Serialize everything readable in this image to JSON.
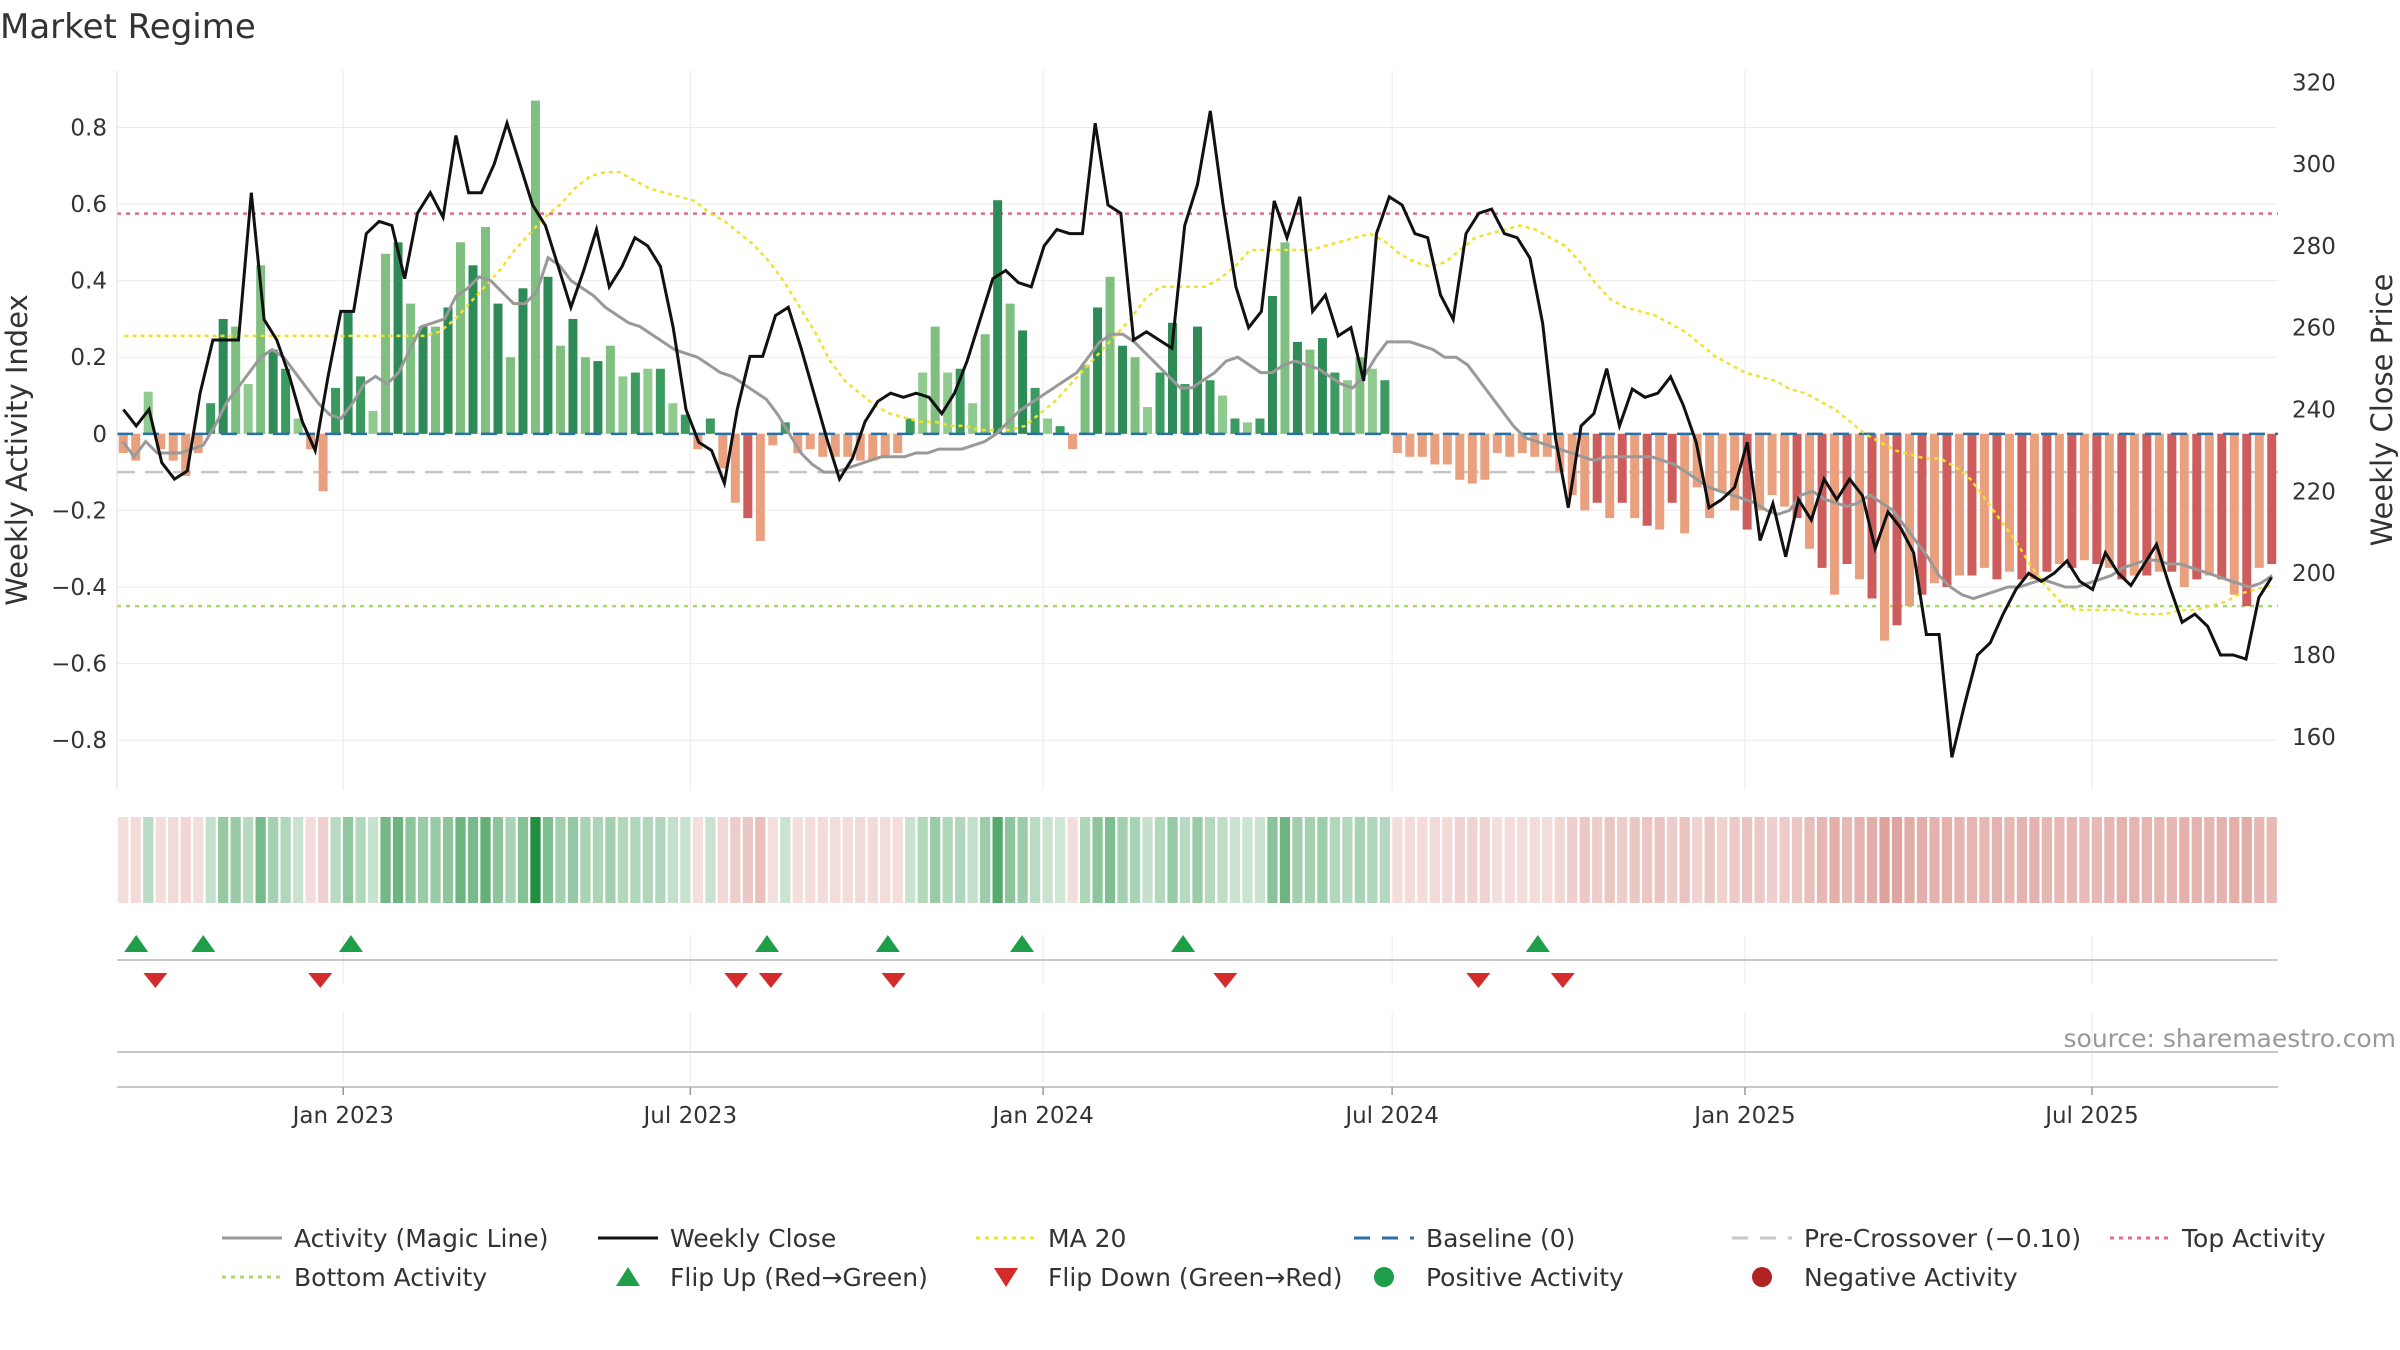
{
  "chart_data": {
    "type": "bar",
    "title": "Market Regime",
    "ylabel_left": "Weekly Activity Index",
    "ylabel_right": "Weekly Close Price",
    "ylim_left": [
      -0.93,
      0.95
    ],
    "ylim_right": [
      147,
      323
    ],
    "yticks_left": [
      -0.8,
      -0.6,
      -0.4,
      -0.2,
      0,
      0.2,
      0.4,
      0.6,
      0.8
    ],
    "yticks_left_labels": [
      "−0.8",
      "−0.6",
      "−0.4",
      "−0.2",
      "0",
      "0.2",
      "0.4",
      "0.6",
      "0.8"
    ],
    "yticks_right": [
      160,
      180,
      200,
      220,
      240,
      260,
      280,
      300,
      320
    ],
    "yticks_right_labels": [
      "160",
      "180",
      "200",
      "220",
      "240",
      "260",
      "280",
      "300",
      "320"
    ],
    "x_start": "2022-09-05",
    "x_end": "2025-10-06",
    "x_ticks": [
      {
        "date": "2023-01-01",
        "label": "Jan 2023"
      },
      {
        "date": "2023-07-01",
        "label": "Jul 2023"
      },
      {
        "date": "2024-01-01",
        "label": "Jan 2024"
      },
      {
        "date": "2024-07-01",
        "label": "Jul 2024"
      },
      {
        "date": "2025-01-01",
        "label": "Jan 2025"
      },
      {
        "date": "2025-07-01",
        "label": "Jul 2025"
      }
    ],
    "reference_lines": {
      "top_activity": 0.575,
      "bottom_activity": -0.45,
      "baseline": 0,
      "pre_crossover": -0.1
    },
    "series": [
      {
        "name": "Activity (Magic Line)",
        "kind": "line",
        "values": [
          -0.02,
          -0.06,
          -0.02,
          -0.05,
          -0.05,
          -0.05,
          -0.04,
          -0.03,
          0.02,
          0.08,
          0.12,
          0.16,
          0.2,
          0.22,
          0.2,
          0.16,
          0.12,
          0.08,
          0.05,
          0.04,
          0.08,
          0.13,
          0.15,
          0.13,
          0.16,
          0.22,
          0.28,
          0.29,
          0.3,
          0.36,
          0.38,
          0.41,
          0.4,
          0.37,
          0.34,
          0.34,
          0.37,
          0.46,
          0.44,
          0.4,
          0.38,
          0.36,
          0.33,
          0.31,
          0.29,
          0.28,
          0.26,
          0.24,
          0.22,
          0.21,
          0.2,
          0.18,
          0.16,
          0.15,
          0.13,
          0.11,
          0.09,
          0.05,
          0.0,
          -0.05,
          -0.08,
          -0.1,
          -0.1,
          -0.09,
          -0.08,
          -0.07,
          -0.06,
          -0.06,
          -0.06,
          -0.05,
          -0.05,
          -0.04,
          -0.04,
          -0.04,
          -0.03,
          -0.02,
          0.0,
          0.03,
          0.06,
          0.08,
          0.1,
          0.12,
          0.14,
          0.16,
          0.2,
          0.24,
          0.26,
          0.26,
          0.24,
          0.21,
          0.18,
          0.15,
          0.12,
          0.12,
          0.14,
          0.16,
          0.19,
          0.2,
          0.18,
          0.16,
          0.16,
          0.18,
          0.19,
          0.18,
          0.17,
          0.15,
          0.13,
          0.12,
          0.15,
          0.2,
          0.24,
          0.24,
          0.24,
          0.23,
          0.22,
          0.2,
          0.2,
          0.18,
          0.14,
          0.1,
          0.06,
          0.02,
          -0.01,
          -0.02,
          -0.03,
          -0.04,
          -0.05,
          -0.06,
          -0.07,
          -0.06,
          -0.06,
          -0.06,
          -0.06,
          -0.06,
          -0.07,
          -0.08,
          -0.1,
          -0.12,
          -0.14,
          -0.15,
          -0.16,
          -0.17,
          -0.18,
          -0.2,
          -0.21,
          -0.2,
          -0.16,
          -0.15,
          -0.17,
          -0.18,
          -0.19,
          -0.18,
          -0.16,
          -0.18,
          -0.2,
          -0.24,
          -0.28,
          -0.32,
          -0.37,
          -0.4,
          -0.42,
          -0.43,
          -0.42,
          -0.41,
          -0.4,
          -0.4,
          -0.39,
          -0.38,
          -0.39,
          -0.4,
          -0.4,
          -0.39,
          -0.38,
          -0.37,
          -0.35,
          -0.34,
          -0.33,
          -0.33,
          -0.34,
          -0.34,
          -0.35,
          -0.36,
          -0.37,
          -0.38,
          -0.39,
          -0.4,
          -0.39,
          -0.37
        ]
      },
      {
        "name": "Weekly Close",
        "kind": "line",
        "axis": "right",
        "values": [
          240,
          236,
          240,
          227,
          223,
          225,
          244,
          257,
          257,
          257,
          293,
          262,
          257,
          248,
          237,
          230,
          248,
          264,
          264,
          283,
          286,
          285,
          272,
          288,
          293,
          287,
          307,
          293,
          293,
          300,
          310,
          300,
          290,
          285,
          275,
          265,
          274,
          284,
          270,
          275,
          282,
          280,
          275,
          260,
          240,
          232,
          230,
          222,
          240,
          253,
          253,
          263,
          265,
          255,
          244,
          233,
          223,
          228,
          237,
          242,
          244,
          243,
          244,
          243,
          239,
          244,
          252,
          262,
          272,
          274,
          271,
          270,
          280,
          284,
          283,
          283,
          310,
          290,
          288,
          257,
          259,
          257,
          255,
          285,
          295,
          313,
          290,
          270,
          260,
          264,
          291,
          282,
          292,
          264,
          268,
          258,
          260,
          247,
          283,
          292,
          290,
          283,
          282,
          268,
          262,
          283,
          288,
          289,
          283,
          282,
          277,
          261,
          233,
          216,
          236,
          239,
          250,
          236,
          245,
          243,
          244,
          248,
          241,
          232,
          216,
          218,
          221,
          232,
          208,
          217,
          204,
          218,
          213,
          223,
          218,
          223,
          219,
          206,
          215,
          211,
          205,
          185,
          185,
          155,
          168,
          180,
          183,
          190,
          196,
          200,
          198,
          200,
          203,
          198,
          196,
          205,
          200,
          197,
          202,
          207,
          197,
          188,
          190,
          187,
          180,
          180,
          179,
          194,
          199
        ]
      },
      {
        "name": "MA 20",
        "kind": "line",
        "axis": "right",
        "values": [
          258,
          258,
          258,
          258,
          258,
          258,
          258,
          258,
          258,
          258,
          258,
          258,
          258,
          258,
          258,
          258,
          258,
          258,
          258,
          258,
          258,
          259,
          262,
          266,
          270,
          274,
          279,
          283,
          287,
          290,
          294,
          297,
          298,
          298,
          296,
          294,
          293,
          292,
          291,
          288,
          286,
          283,
          280,
          276,
          271,
          265,
          259,
          252,
          247,
          244,
          241,
          239,
          238,
          237,
          237,
          236,
          236,
          235,
          235,
          235,
          236,
          239,
          242,
          246,
          250,
          254,
          258,
          262,
          267,
          270,
          270,
          270,
          270,
          272,
          275,
          279,
          279,
          279,
          279,
          279,
          280,
          281,
          282,
          283,
          281,
          278,
          276,
          275,
          276,
          279,
          282,
          283,
          284,
          285,
          284,
          282,
          280,
          276,
          271,
          267,
          265,
          264,
          263,
          261,
          259,
          256,
          253,
          251,
          249,
          248,
          247,
          245,
          244,
          242,
          240,
          237,
          234,
          232,
          230,
          229,
          228,
          228,
          226,
          223,
          218,
          213,
          208,
          202,
          197,
          193,
          191,
          191,
          191,
          191,
          190,
          190,
          190,
          191,
          191,
          192,
          193,
          195,
          196,
          197
        ]
      },
      {
        "name": "Weekly Activity",
        "kind": "bar",
        "values": [
          -0.05,
          -0.07,
          0.11,
          -0.04,
          -0.07,
          -0.11,
          -0.05,
          0.08,
          0.3,
          0.28,
          0.13,
          0.44,
          0.22,
          0.17,
          0.04,
          -0.04,
          -0.15,
          0.12,
          0.32,
          0.15,
          0.06,
          0.47,
          0.5,
          0.34,
          0.28,
          0.28,
          0.33,
          0.5,
          0.44,
          0.54,
          0.34,
          0.2,
          0.38,
          0.87,
          0.41,
          0.23,
          0.3,
          0.2,
          0.19,
          0.23,
          0.15,
          0.16,
          0.17,
          0.17,
          0.08,
          0.05,
          -0.04,
          0.04,
          -0.09,
          -0.18,
          -0.22,
          -0.28,
          -0.03,
          0.03,
          -0.05,
          -0.04,
          -0.06,
          -0.06,
          -0.06,
          -0.07,
          -0.07,
          -0.06,
          -0.05,
          0.04,
          0.16,
          0.28,
          0.16,
          0.17,
          0.08,
          0.26,
          0.61,
          0.34,
          0.27,
          0.12,
          0.04,
          0.02,
          -0.04,
          0.18,
          0.33,
          0.41,
          0.23,
          0.2,
          0.07,
          0.16,
          0.29,
          0.13,
          0.28,
          0.14,
          0.1,
          0.04,
          0.03,
          0.04,
          0.36,
          0.5,
          0.24,
          0.22,
          0.25,
          0.16,
          0.14,
          0.2,
          0.17,
          0.14,
          -0.05,
          -0.06,
          -0.06,
          -0.08,
          -0.08,
          -0.12,
          -0.13,
          -0.12,
          -0.05,
          -0.06,
          -0.05,
          -0.06,
          -0.06,
          -0.1,
          -0.16,
          -0.2,
          -0.18,
          -0.22,
          -0.18,
          -0.22,
          -0.24,
          -0.25,
          -0.18,
          -0.26,
          -0.14,
          -0.22,
          -0.15,
          -0.2,
          -0.25,
          -0.2,
          -0.16,
          -0.19,
          -0.22,
          -0.3,
          -0.35,
          -0.42,
          -0.34,
          -0.38,
          -0.43,
          -0.54,
          -0.5,
          -0.45,
          -0.42,
          -0.39,
          -0.4,
          -0.37,
          -0.37,
          -0.35,
          -0.38,
          -0.36,
          -0.38,
          -0.38,
          -0.36,
          -0.34,
          -0.35,
          -0.33,
          -0.34,
          -0.35,
          -0.38,
          -0.37,
          -0.37,
          -0.36,
          -0.36,
          -0.4,
          -0.38,
          -0.37,
          -0.38,
          -0.42,
          -0.45,
          -0.35,
          -0.34
        ]
      }
    ],
    "flip_up_dates": [
      "2022-09-15",
      "2022-10-20",
      "2023-01-05",
      "2023-08-10",
      "2023-10-12",
      "2023-12-21",
      "2024-03-14",
      "2024-09-15"
    ],
    "flip_down_dates": [
      "2022-09-25",
      "2022-12-20",
      "2023-07-25",
      "2023-08-12",
      "2023-10-15",
      "2024-04-05",
      "2024-08-15",
      "2024-09-28"
    ],
    "legend": [
      {
        "label": "Activity (Magic Line)",
        "marker": "line",
        "color": "#999999"
      },
      {
        "label": "Weekly Close",
        "marker": "line",
        "color": "#111111"
      },
      {
        "label": "MA 20",
        "marker": "dotted-line",
        "color": "#f2e02a"
      },
      {
        "label": "Baseline (0)",
        "marker": "dashed-line",
        "color": "#2a6fa8"
      },
      {
        "label": "Pre-Crossover (−0.10)",
        "marker": "dashed-line",
        "color": "#c6c6c6"
      },
      {
        "label": "Top Activity",
        "marker": "dotted-line",
        "color": "#e06c8a"
      },
      {
        "label": "Bottom Activity",
        "marker": "dotted-line",
        "color": "#a9d96b"
      },
      {
        "label": "Flip Up (Red→Green)",
        "marker": "triangle-up",
        "color": "#1e9e48"
      },
      {
        "label": "Flip Down (Green→Red)",
        "marker": "triangle-down",
        "color": "#d42b2b"
      },
      {
        "label": "Positive Activity",
        "marker": "circle",
        "color": "#1e9e48"
      },
      {
        "label": "Negative Activity",
        "marker": "circle",
        "color": "#b22222"
      }
    ],
    "source": "source: sharemaestro.com",
    "grid": true
  }
}
